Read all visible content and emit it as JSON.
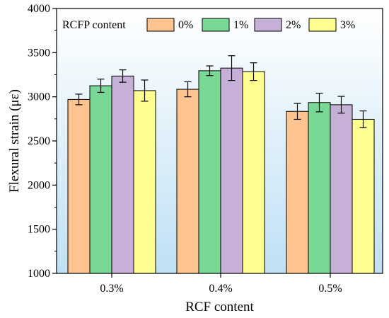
{
  "chart_data": {
    "type": "bar",
    "xlabel": "RCF content",
    "ylabel": "Flexural strain (με)",
    "ylim": [
      1000,
      4000
    ],
    "yticks": [
      1000,
      1500,
      2000,
      2500,
      3000,
      3500,
      4000
    ],
    "categories": [
      "0.3%",
      "0.4%",
      "0.5%"
    ],
    "legend_title": "RCFP content",
    "legend_position": "top",
    "series": [
      {
        "name": "0%",
        "color": "#FDC48F",
        "values": [
          2970,
          3085,
          2835
        ],
        "errors": [
          60,
          85,
          90
        ]
      },
      {
        "name": "1%",
        "color": "#79D895",
        "values": [
          3125,
          3295,
          2935
        ],
        "errors": [
          75,
          55,
          105
        ]
      },
      {
        "name": "2%",
        "color": "#C6B0D8",
        "values": [
          3235,
          3325,
          2910
        ],
        "errors": [
          70,
          140,
          95
        ]
      },
      {
        "name": "3%",
        "color": "#FFFF91",
        "values": [
          3070,
          3285,
          2745
        ],
        "errors": [
          120,
          100,
          95
        ]
      }
    ],
    "background": {
      "top": "#ffffff",
      "bottom": "#bfe0f4"
    }
  }
}
